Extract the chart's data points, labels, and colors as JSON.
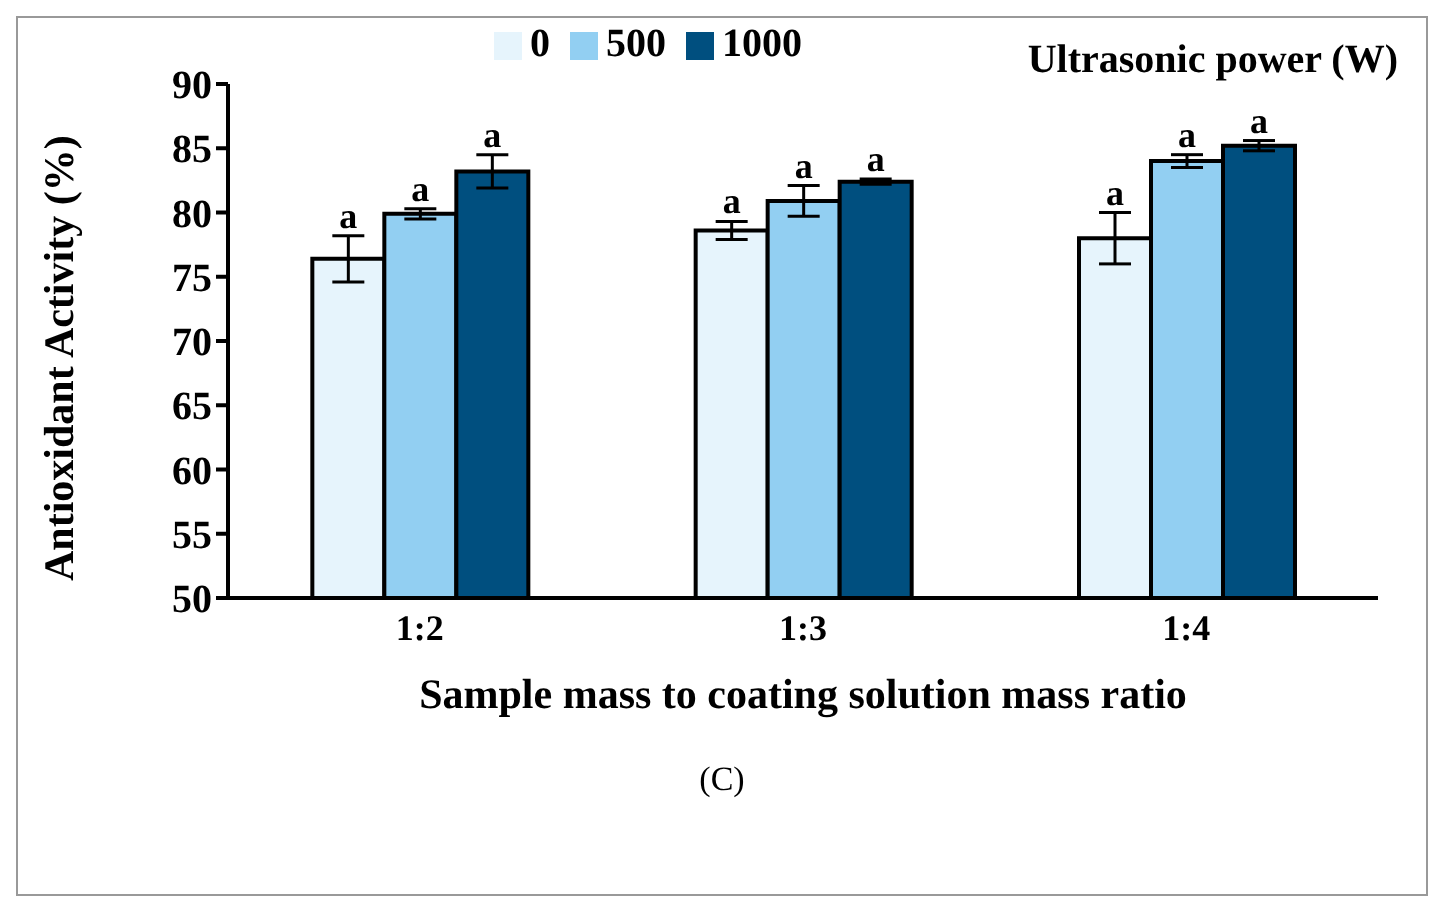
{
  "chart_data": {
    "type": "bar",
    "categories": [
      "1:2",
      "1:3",
      "1:4"
    ],
    "series": [
      {
        "name": "0",
        "color": "#e6f4fc",
        "values": [
          76.4,
          78.6,
          78.0
        ],
        "errors": [
          1.8,
          0.7,
          2.0
        ]
      },
      {
        "name": "500",
        "color": "#92cff2",
        "values": [
          79.9,
          80.9,
          84.0
        ],
        "errors": [
          0.4,
          1.2,
          0.5
        ]
      },
      {
        "name": "1000",
        "color": "#004f7f",
        "values": [
          83.2,
          82.4,
          85.2
        ],
        "errors": [
          1.3,
          0.2,
          0.4
        ]
      }
    ],
    "xlabel": "Sample mass to coating solution mass ratio",
    "ylabel": "Antioxidant Activity (%)",
    "legend_title": "Ultrasonic power (W)",
    "ylim": [
      50,
      90
    ],
    "yticks": [
      50,
      55,
      60,
      65,
      70,
      75,
      80,
      85,
      90
    ],
    "grid": false,
    "legend": "top",
    "annotations": [
      "a",
      "a",
      "a",
      "a",
      "a",
      "a",
      "a",
      "a",
      "a",
      "(C)"
    ]
  }
}
